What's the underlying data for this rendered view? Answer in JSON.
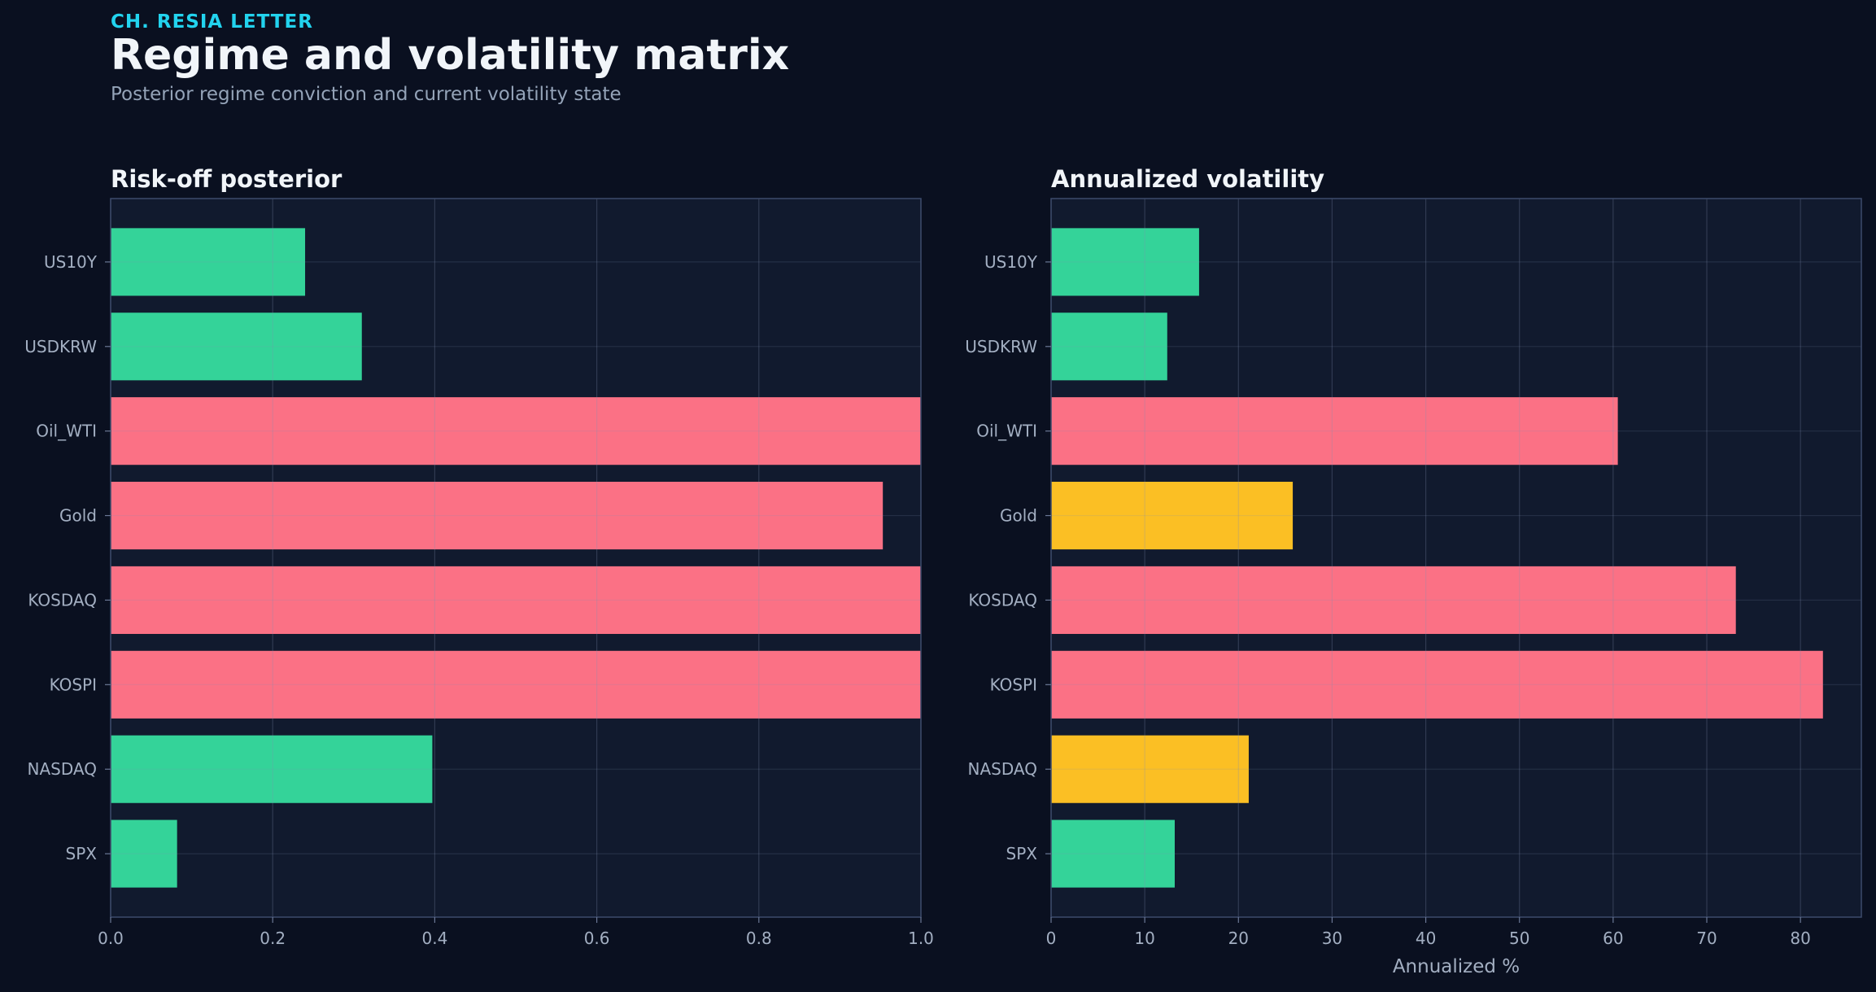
{
  "header": {
    "brand": "CH. RESIA LETTER",
    "title": "Regime and volatility matrix",
    "subtitle": "Posterior regime conviction and current volatility state"
  },
  "colors": {
    "background": "#0a1020",
    "panel": "#111a2e",
    "green": "#34d399",
    "red": "#fb7185",
    "yellow": "#fbbf24",
    "grid": "#2a3550",
    "axis": "#3c4a6b"
  },
  "chart_data": [
    {
      "type": "bar",
      "orientation": "horizontal",
      "title": "Risk-off posterior",
      "xlabel": "",
      "ylabel": "",
      "categories": [
        "US10Y",
        "USDKRW",
        "Oil_WTI",
        "Gold",
        "KOSDAQ",
        "KOSPI",
        "NASDAQ",
        "SPX"
      ],
      "values": [
        0.24,
        0.31,
        1.0,
        0.953,
        1.0,
        1.0,
        0.397,
        0.082
      ],
      "bar_colors": [
        "green",
        "green",
        "red",
        "red",
        "red",
        "red",
        "green",
        "green"
      ],
      "xlim": [
        0,
        1.0
      ],
      "xticks": [
        "0.0",
        "0.2",
        "0.4",
        "0.6",
        "0.8",
        "1.0"
      ],
      "xtick_values": [
        0,
        0.2,
        0.4,
        0.6,
        0.8,
        1.0
      ],
      "grid": true
    },
    {
      "type": "bar",
      "orientation": "horizontal",
      "title": "Annualized volatility",
      "xlabel": "Annualized %",
      "ylabel": "",
      "categories": [
        "US10Y",
        "USDKRW",
        "Oil_WTI",
        "Gold",
        "KOSDAQ",
        "KOSPI",
        "NASDAQ",
        "SPX"
      ],
      "values": [
        15.8,
        12.4,
        60.5,
        25.8,
        73.1,
        82.4,
        21.1,
        13.2
      ],
      "bar_colors": [
        "green",
        "green",
        "red",
        "yellow",
        "red",
        "red",
        "yellow",
        "green"
      ],
      "xlim": [
        0,
        86.5
      ],
      "xticks": [
        "0",
        "10",
        "20",
        "30",
        "40",
        "50",
        "60",
        "70",
        "80"
      ],
      "xtick_values": [
        0,
        10,
        20,
        30,
        40,
        50,
        60,
        70,
        80
      ],
      "grid": true
    }
  ]
}
